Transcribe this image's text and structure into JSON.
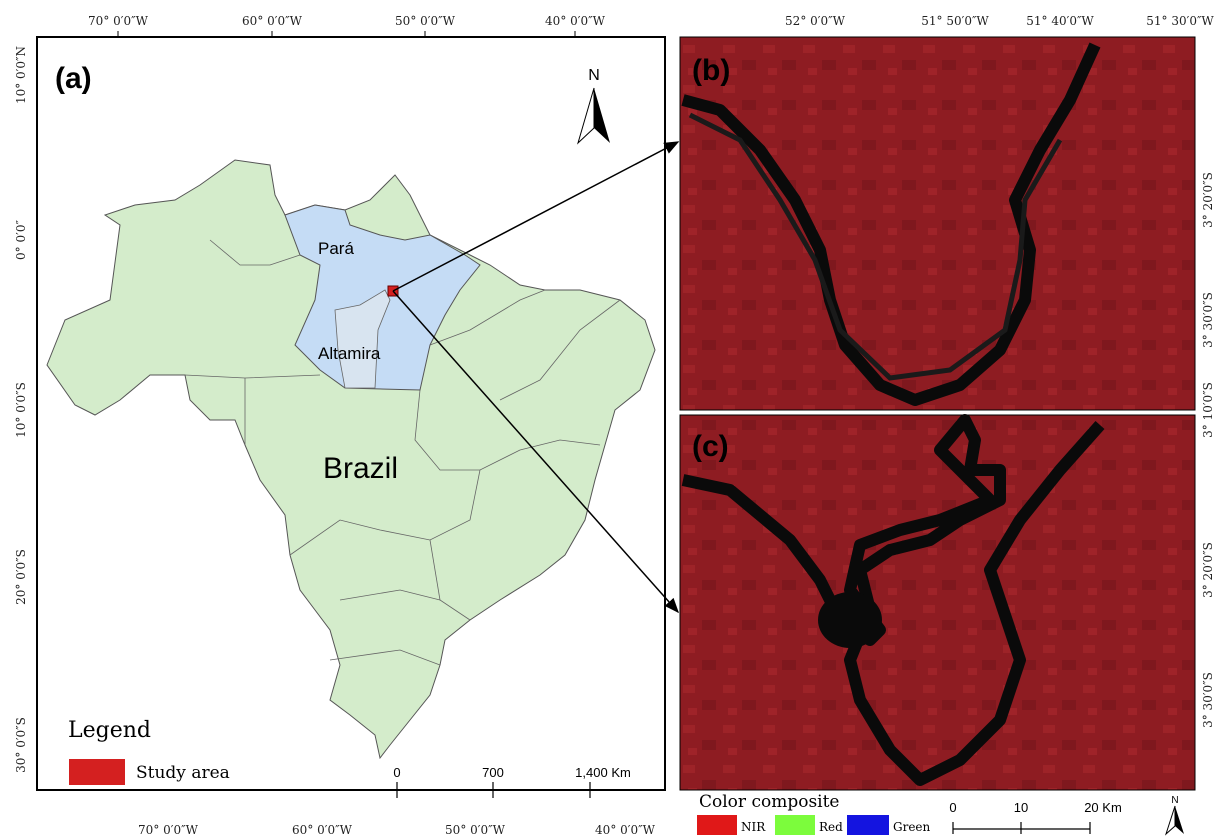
{
  "panel_a": {
    "label": "(a)",
    "top_lon_labels": [
      "70° 0′0″W",
      "60° 0′0″W",
      "50° 0′0″W",
      "40° 0′0″W"
    ],
    "bottom_lon_labels": [
      "70° 0′0″W",
      "60° 0′0″W",
      "50° 0′0″W",
      "40° 0′0″W"
    ],
    "lat_labels": [
      "10° 0′0″N",
      "0° 0′0″",
      "10° 0′0″S",
      "20° 0′0″S",
      "30° 0′0″S"
    ],
    "north": "N",
    "places": {
      "state": "Pará",
      "municipality": "Altamira",
      "country": "Brazil"
    },
    "legend": {
      "title": "Legend",
      "item": "Study area"
    },
    "scale": [
      "0",
      "700",
      "1,400 Km"
    ]
  },
  "panel_b": {
    "label": "(b)",
    "top_lon_labels": [
      "52° 0′0″W",
      "51° 50′0″W",
      "51° 40′0″W",
      "51° 30′0″W"
    ],
    "lat_labels": [
      "3° 20′0″S",
      "3° 30′0″S"
    ]
  },
  "panel_c": {
    "label": "(c)",
    "lat_labels": [
      "3° 10′0″S",
      "3° 20′0″S",
      "3° 30′0″S"
    ]
  },
  "composite": {
    "title": "Color composite",
    "bands": [
      "NIR",
      "Red",
      "Green"
    ],
    "scale": [
      "0",
      "10",
      "20 Km"
    ],
    "north": "N"
  }
}
